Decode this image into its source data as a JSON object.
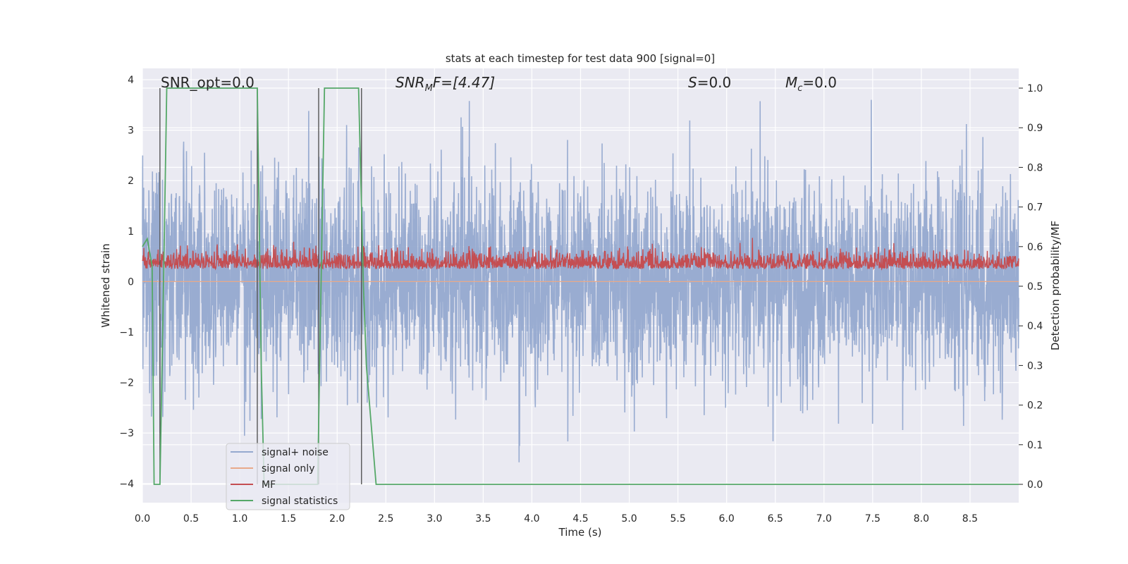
{
  "chart_data": {
    "type": "line",
    "title": "stats at each timestep for test data 900 [signal=0]",
    "xlabel": "Time (s)",
    "ylabel_left": "Whitened strain",
    "ylabel_right": "Detection probability/MF",
    "xlim": [
      0.0,
      9.0
    ],
    "ylim_left": [
      -4.4,
      4.15
    ],
    "ylim_right": [
      -0.05,
      1.03
    ],
    "x_ticks": [
      0.0,
      0.5,
      1.0,
      1.5,
      2.0,
      2.5,
      3.0,
      3.5,
      4.0,
      4.5,
      5.0,
      5.5,
      6.0,
      6.5,
      7.0,
      7.5,
      8.0,
      8.5
    ],
    "x_tick_labels": [
      "0.0",
      "0.5",
      "1.0",
      "1.5",
      "2.0",
      "2.5",
      "3.0",
      "3.5",
      "4.0",
      "4.5",
      "5.0",
      "5.5",
      "6.0",
      "6.5",
      "7.0",
      "7.5",
      "8.0",
      "8.5"
    ],
    "y_left_ticks": [
      4,
      3,
      2,
      1,
      0,
      -1,
      -2,
      -3,
      -4
    ],
    "y_left_tick_labels": [
      "4",
      "3",
      "2",
      "1",
      "0",
      "−1",
      "−2",
      "−3",
      "−4"
    ],
    "y_right_ticks": [
      1.0,
      0.9,
      0.8,
      0.7,
      0.6,
      0.5,
      0.4,
      0.3,
      0.2,
      0.1,
      0.0
    ],
    "y_right_tick_labels": [
      "1.0",
      "0.9",
      "0.8",
      "0.7",
      "0.6",
      "0.5",
      "0.4",
      "0.3",
      "0.2",
      "0.1",
      "0.0"
    ],
    "grid": true,
    "legend_position": "lower-left",
    "annotations": {
      "snr_opt": "SNR_opt=0.0",
      "snr_mf_main": "SNR",
      "snr_mf_sub": "M",
      "snr_mf_rest": "F=[4.47]",
      "s_main": "S",
      "s_rest": "=0.0",
      "mc_main": "M",
      "mc_sub": "c",
      "mc_rest": "=0.0"
    },
    "series": [
      {
        "name": "signal+ noise",
        "color": "#95a9cf",
        "axis": "left",
        "description_values": "whitened noise, roughly within -3.9 to 3.6"
      },
      {
        "name": "signal only",
        "color": "#e8a98a",
        "axis": "left",
        "values": "flat 0"
      },
      {
        "name": "MF",
        "color": "#c44e52",
        "axis": "left",
        "range": [
          0.0,
          0.9
        ]
      },
      {
        "name": "signal statistics",
        "color": "#55a868",
        "axis": "right",
        "x": [
          0.0,
          0.05,
          0.1,
          0.12,
          0.18,
          0.22,
          0.25,
          1.18,
          1.22,
          1.25,
          1.8,
          1.82,
          1.87,
          2.22,
          2.27,
          2.3,
          2.4,
          9.0
        ],
        "y": [
          0.6,
          0.62,
          0.55,
          0.0,
          0.0,
          0.55,
          1.0,
          1.0,
          0.3,
          0.0,
          0.0,
          0.3,
          1.0,
          1.0,
          0.5,
          0.3,
          0.0,
          0.0
        ]
      }
    ],
    "marker_lines": [
      {
        "x": 0.18,
        "y_range": [
          0.0,
          1.0
        ]
      },
      {
        "x": 1.18,
        "y_range": [
          0.0,
          1.0
        ]
      },
      {
        "x": 1.81,
        "y_range": [
          0.0,
          1.0
        ]
      },
      {
        "x": 2.25,
        "y_range": [
          0.0,
          1.0
        ]
      }
    ]
  }
}
